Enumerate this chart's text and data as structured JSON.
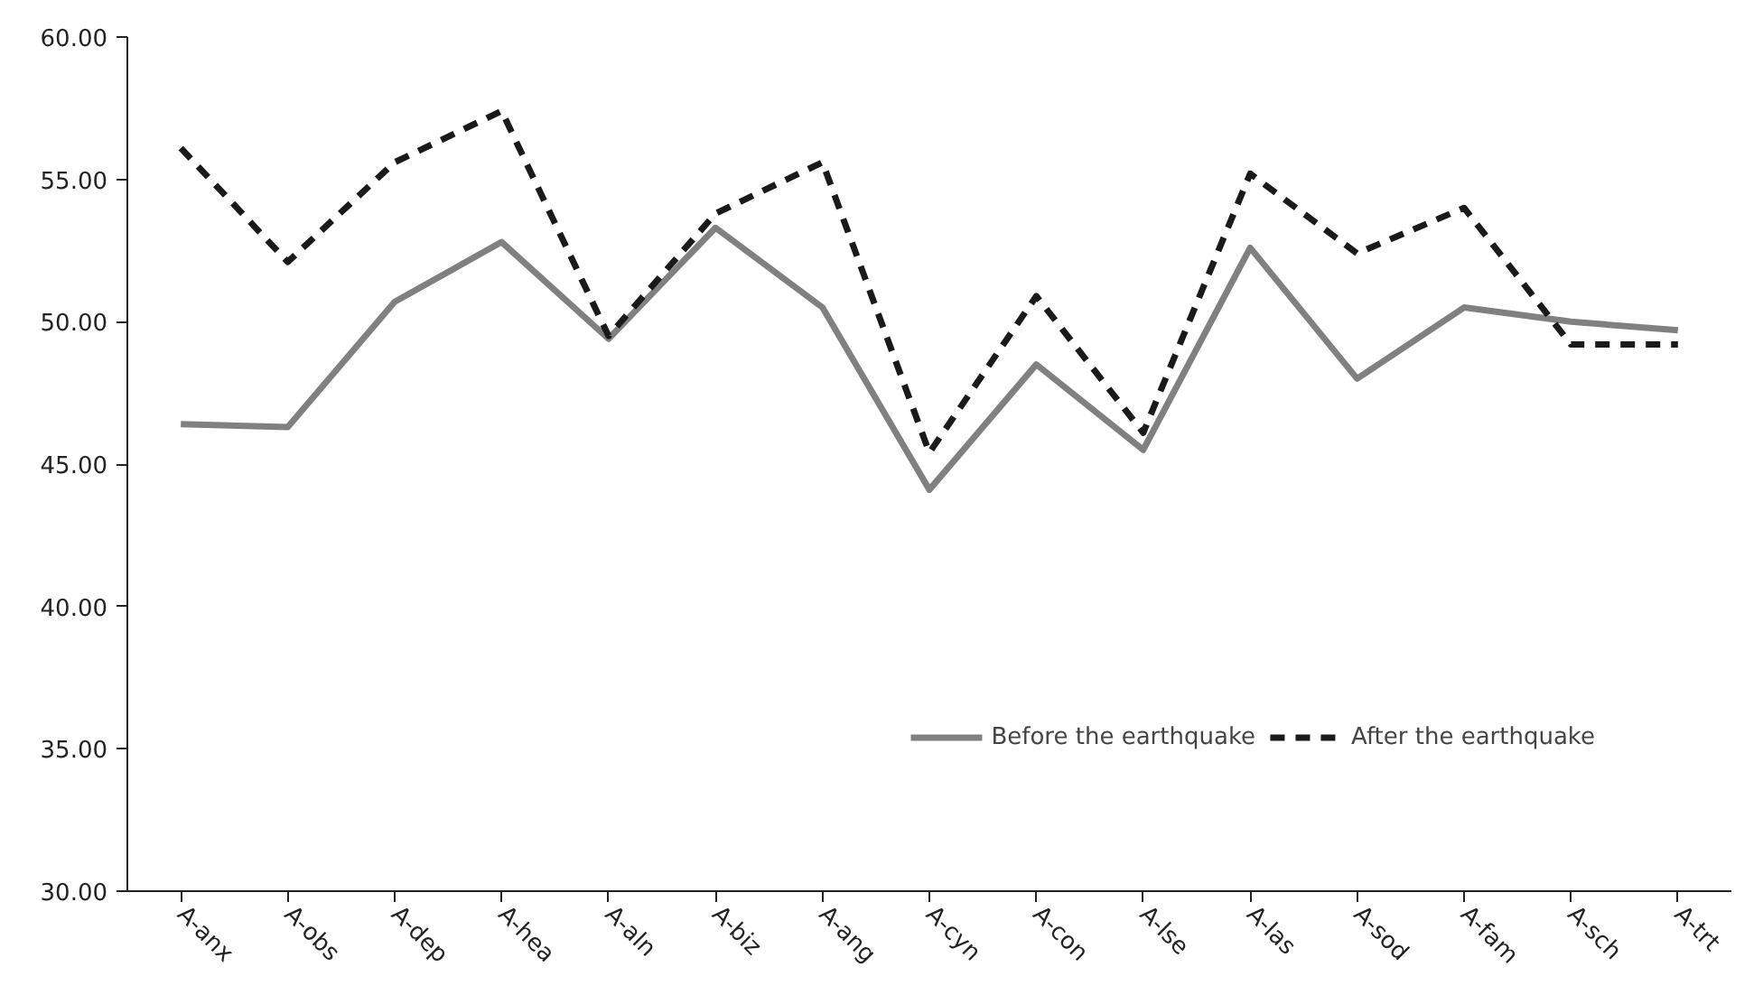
{
  "chart_data": {
    "type": "line",
    "categories": [
      "A-anx",
      "A-obs",
      "A-dep",
      "A-hea",
      "A-aln",
      "A-biz",
      "A-ang",
      "A-cyn",
      "A-con",
      "A-lse",
      "A-las",
      "A-sod",
      "A-fam",
      "A-sch",
      "A-trt"
    ],
    "series": [
      {
        "name": "Before the earthquake",
        "color": "#808080",
        "line_style": "solid",
        "values": [
          46.4,
          46.3,
          50.7,
          52.8,
          49.4,
          53.3,
          50.5,
          44.1,
          48.5,
          45.5,
          52.6,
          48.0,
          50.5,
          50.0,
          49.7
        ]
      },
      {
        "name": "After the earthquake",
        "color": "#1a1a1a",
        "line_style": "dashed",
        "values": [
          56.1,
          52.1,
          55.6,
          57.4,
          49.5,
          53.8,
          55.6,
          45.4,
          50.9,
          46.1,
          55.2,
          52.4,
          54.0,
          49.2,
          49.2
        ]
      }
    ],
    "ylim": [
      30,
      60
    ],
    "yticks": [
      {
        "value": 30,
        "label": "30.00"
      },
      {
        "value": 35,
        "label": "35.00"
      },
      {
        "value": 40,
        "label": "40.00"
      },
      {
        "value": 45,
        "label": "45.00"
      },
      {
        "value": 50,
        "label": "50.00"
      },
      {
        "value": 55,
        "label": "55.00"
      },
      {
        "value": 60,
        "label": "60.00"
      }
    ],
    "grid": false,
    "legend": "bottom right"
  }
}
